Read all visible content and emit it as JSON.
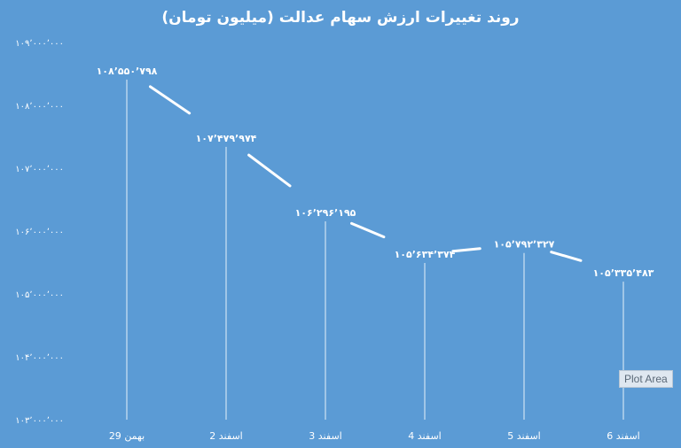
{
  "chart_data": {
    "type": "line",
    "title": "روند تغییرات ارزش سهام عدالت (میلیون تومان)",
    "categories": [
      "29 بهمن",
      "2 اسفند",
      "3 اسفند",
      "4 اسفند",
      "5 اسفند",
      "6 اسفند"
    ],
    "values": [
      108550798,
      107479974,
      106296195,
      105634374,
      105792327,
      105335483
    ],
    "data_labels": [
      "۱۰۸٬۵۵۰٬۷۹۸",
      "۱۰۷٬۴۷۹٬۹۷۴",
      "۱۰۶٬۲۹۶٬۱۹۵",
      "۱۰۵٬۶۳۴٬۳۷۴",
      "۱۰۵٬۷۹۲٬۳۲۷",
      "۱۰۵٬۳۳۵٬۴۸۳"
    ],
    "y_ticks": [
      103000000,
      104000000,
      105000000,
      106000000,
      107000000,
      108000000,
      109000000
    ],
    "y_tick_labels": [
      "۱۰۳٬۰۰۰٬۰۰۰",
      "۱۰۴٬۰۰۰٬۰۰۰",
      "۱۰۵٬۰۰۰٬۰۰۰",
      "۱۰۶٬۰۰۰٬۰۰۰",
      "۱۰۷٬۰۰۰٬۰۰۰",
      "۱۰۸٬۰۰۰٬۰۰۰",
      "۱۰۹٬۰۰۰٬۰۰۰"
    ],
    "ylim": [
      103000000,
      109000000
    ],
    "drop_lines": true,
    "grid": false,
    "legend": "none",
    "colors": {
      "background": "#5b9bd5",
      "line": "#ffffff",
      "text": "#ffffff"
    }
  },
  "tooltip": {
    "label": "Plot Area"
  }
}
